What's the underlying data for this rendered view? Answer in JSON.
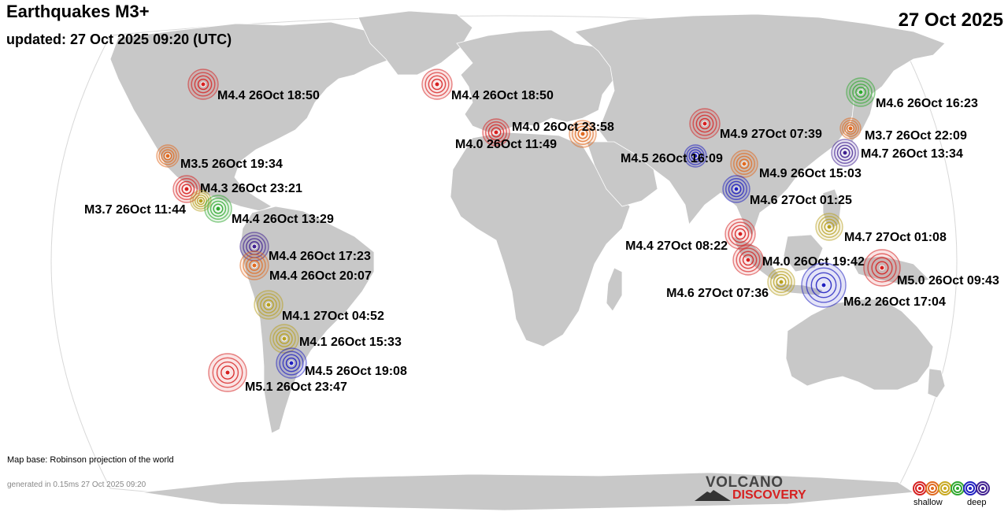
{
  "header": {
    "title": "Earthquakes M3+",
    "updated": "updated: 27 Oct 2025 09:20 (UTC)",
    "date": "27 Oct 2025"
  },
  "footer": {
    "map_note": "Map base: Robinson projection of the world",
    "generated": "generated in 0.15ms 27 Oct 2025 09:20"
  },
  "logo": {
    "line1": "VOLCANO",
    "line2": "DISCOVERY"
  },
  "legend": {
    "shallow_label": "shallow",
    "deep_label": "deep",
    "depth_colors": [
      "#d62020",
      "#e06a20",
      "#c8a820",
      "#30a830",
      "#2020c0",
      "#402090"
    ]
  },
  "earthquakes": [
    {
      "label": "M4.4 26Oct 18:50",
      "depth": "red"
    },
    {
      "label": "M4.4 26Oct 18:50",
      "depth": "red"
    },
    {
      "label": "M4.6 26Oct 16:23",
      "depth": "green"
    },
    {
      "label": "M4.0 26Oct 23:58",
      "depth": "orange"
    },
    {
      "label": "M4.0 26Oct 11:49",
      "depth": "red"
    },
    {
      "label": "M4.9 27Oct 07:39",
      "depth": "red"
    },
    {
      "label": "M3.7 26Oct 22:09",
      "depth": "orange"
    },
    {
      "label": "M4.7 26Oct 13:34",
      "depth": "purple"
    },
    {
      "label": "M3.5 26Oct 19:34",
      "depth": "orange"
    },
    {
      "label": "M4.5 26Oct 16:09",
      "depth": "blue"
    },
    {
      "label": "M4.9 26Oct 15:03",
      "depth": "orange"
    },
    {
      "label": "M4.3 26Oct 23:21",
      "depth": "red"
    },
    {
      "label": "M3.7 26Oct 11:44",
      "depth": "yellow"
    },
    {
      "label": "M4.4 26Oct 13:29",
      "depth": "green"
    },
    {
      "label": "M4.6 27Oct 01:25",
      "depth": "blue"
    },
    {
      "label": "M4.7 27Oct 01:08",
      "depth": "yellow"
    },
    {
      "label": "M4.4 26Oct 17:23",
      "depth": "purple"
    },
    {
      "label": "M4.4 27Oct 08:22",
      "depth": "red"
    },
    {
      "label": "M4.0 26Oct 19:42",
      "depth": "red"
    },
    {
      "label": "M4.4 26Oct 20:07",
      "depth": "orange"
    },
    {
      "label": "M5.0 26Oct 09:43",
      "depth": "red"
    },
    {
      "label": "M4.6 27Oct 07:36",
      "depth": "yellow"
    },
    {
      "label": "M6.2 26Oct 17:04",
      "depth": "blue"
    },
    {
      "label": "M4.1 27Oct 04:52",
      "depth": "yellow"
    },
    {
      "label": "M4.1 26Oct 15:33",
      "depth": "yellow"
    },
    {
      "label": "M4.5 26Oct 19:08",
      "depth": "blue"
    },
    {
      "label": "M5.1 26Oct 23:47",
      "depth": "red"
    }
  ]
}
